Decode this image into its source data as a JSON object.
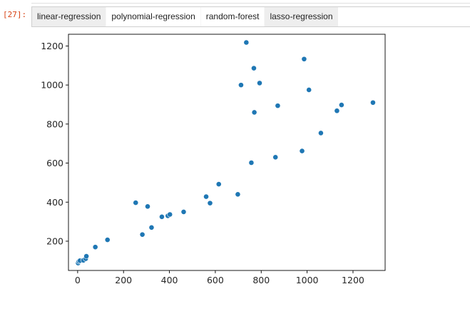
{
  "cell": {
    "prompt": "[27]:"
  },
  "tabs": [
    {
      "label": "linear-regression",
      "selected": false
    },
    {
      "label": "polynomial-regression",
      "selected": true
    },
    {
      "label": "random-forest",
      "selected": true
    },
    {
      "label": "lasso-regression",
      "selected": false
    }
  ],
  "colors": {
    "point": "#1f77b4",
    "prompt": "#d84315"
  },
  "chart_data": {
    "type": "scatter",
    "title": "",
    "xlabel": "",
    "ylabel": "",
    "xlim": [
      -40,
      1340
    ],
    "ylim": [
      50,
      1260
    ],
    "xticks": [
      0,
      200,
      400,
      600,
      800,
      1000,
      1200
    ],
    "yticks": [
      200,
      400,
      600,
      800,
      1000,
      1200
    ],
    "grid": false,
    "legend": "none",
    "points": [
      {
        "x": 2,
        "y": 88
      },
      {
        "x": 5,
        "y": 96
      },
      {
        "x": 10,
        "y": 100
      },
      {
        "x": 25,
        "y": 102
      },
      {
        "x": 35,
        "y": 110
      },
      {
        "x": 38,
        "y": 123
      },
      {
        "x": 77,
        "y": 170
      },
      {
        "x": 130,
        "y": 207
      },
      {
        "x": 253,
        "y": 397
      },
      {
        "x": 282,
        "y": 234
      },
      {
        "x": 305,
        "y": 378
      },
      {
        "x": 322,
        "y": 270
      },
      {
        "x": 367,
        "y": 325
      },
      {
        "x": 393,
        "y": 330
      },
      {
        "x": 402,
        "y": 337
      },
      {
        "x": 462,
        "y": 350
      },
      {
        "x": 560,
        "y": 428
      },
      {
        "x": 577,
        "y": 395
      },
      {
        "x": 615,
        "y": 492
      },
      {
        "x": 698,
        "y": 440
      },
      {
        "x": 712,
        "y": 1000
      },
      {
        "x": 735,
        "y": 1218
      },
      {
        "x": 757,
        "y": 602
      },
      {
        "x": 768,
        "y": 1086
      },
      {
        "x": 770,
        "y": 860
      },
      {
        "x": 793,
        "y": 1010
      },
      {
        "x": 862,
        "y": 630
      },
      {
        "x": 872,
        "y": 894
      },
      {
        "x": 978,
        "y": 662
      },
      {
        "x": 987,
        "y": 1133
      },
      {
        "x": 1008,
        "y": 975
      },
      {
        "x": 1060,
        "y": 754
      },
      {
        "x": 1130,
        "y": 868
      },
      {
        "x": 1150,
        "y": 898
      },
      {
        "x": 1287,
        "y": 910
      }
    ]
  }
}
